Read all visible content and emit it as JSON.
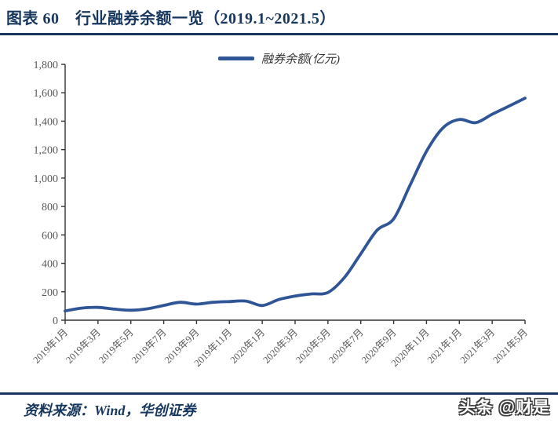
{
  "header": {
    "title": "图表 60　行业融券余额一览（2019.1~2021.5）"
  },
  "footer": {
    "source": "资料来源：Wind，华创证券",
    "watermark": "头条 @财是"
  },
  "chart_data": {
    "type": "line",
    "title": "",
    "legend_position": "top-center",
    "grid": false,
    "x": [
      "2019年1月",
      "2019年2月",
      "2019年3月",
      "2019年4月",
      "2019年5月",
      "2019年6月",
      "2019年7月",
      "2019年8月",
      "2019年9月",
      "2019年10月",
      "2019年11月",
      "2019年12月",
      "2020年1月",
      "2020年2月",
      "2020年3月",
      "2020年4月",
      "2020年5月",
      "2020年6月",
      "2020年7月",
      "2020年8月",
      "2020年9月",
      "2020年10月",
      "2020年11月",
      "2020年12月",
      "2021年1月",
      "2021年2月",
      "2021年3月",
      "2021年4月",
      "2021年5月"
    ],
    "series": [
      {
        "name": "融券余额(亿元)",
        "values": [
          65,
          85,
          90,
          78,
          70,
          80,
          104,
          126,
          113,
          126,
          131,
          135,
          103,
          145,
          170,
          185,
          195,
          300,
          467,
          634,
          713,
          950,
          1188,
          1353,
          1412,
          1390,
          1449,
          1505,
          1562
        ]
      }
    ],
    "ylim": [
      0,
      1800
    ],
    "y_tick_step": 200,
    "y_tick_labels": [
      "0",
      "200",
      "400",
      "600",
      "800",
      "1,000",
      "1,200",
      "1,400",
      "1,600",
      "1,800"
    ],
    "x_tick_every": 2,
    "x_tick_labels": [
      "2019年1月",
      "2019年3月",
      "2019年5月",
      "2019年7月",
      "2019年9月",
      "2019年11月",
      "2020年1月",
      "2020年3月",
      "2020年5月",
      "2020年7月",
      "2020年9月",
      "2020年11月",
      "2021年1月",
      "2021年3月",
      "2021年5月"
    ],
    "colors": {
      "line": "#2F5597",
      "axis": "#333333",
      "tick_text": "#595959",
      "accent_navy": "#17375E"
    }
  }
}
